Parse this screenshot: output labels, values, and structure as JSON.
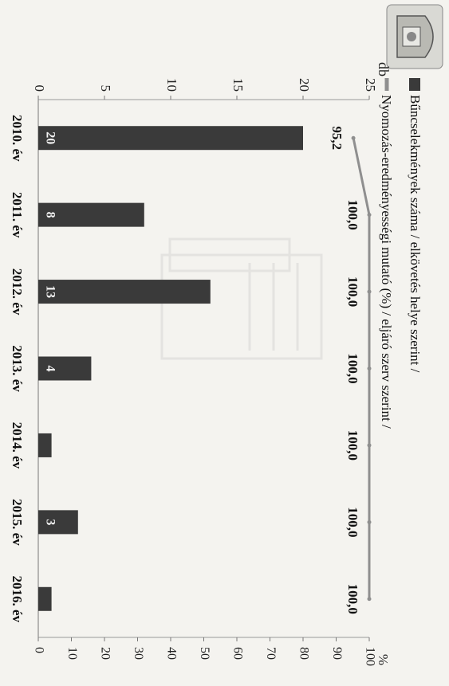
{
  "chart_data": {
    "type": "bar",
    "categories": [
      "2010. év",
      "2011. év",
      "2012. év",
      "2013. év",
      "2014. év",
      "2015. év",
      "2016. év"
    ],
    "series": [
      {
        "name": "Bűncselekmények száma / elkövetés helye szerint /",
        "kind": "bar",
        "axis": "left",
        "values": [
          20,
          8,
          13,
          4,
          1,
          3,
          1
        ],
        "labels": [
          "20",
          "8",
          "13",
          "4",
          "",
          "3",
          ""
        ],
        "color": "#3a3a3a"
      },
      {
        "name": "Nyomozás-eredményességi mutató (%) / eljáró szerv szerint /",
        "kind": "line",
        "axis": "right",
        "values": [
          95.2,
          100.0,
          100.0,
          100.0,
          100.0,
          100.0,
          100.0
        ],
        "labels": [
          "95,2",
          "100,0",
          "100,0",
          "100,0",
          "100,0",
          "100,0",
          "100,0"
        ],
        "color": "#8f8f8f"
      }
    ],
    "left_axis": {
      "label": "db",
      "range": [
        0,
        25
      ],
      "ticks": [
        "0",
        "5",
        "10",
        "15",
        "20",
        "25"
      ]
    },
    "right_axis": {
      "label": "%",
      "range": [
        0,
        100
      ],
      "ticks": [
        "0",
        "10",
        "20",
        "30",
        "40",
        "50",
        "60",
        "70",
        "80",
        "90",
        "100"
      ]
    },
    "legend": {
      "position": "top"
    },
    "grid": false
  }
}
